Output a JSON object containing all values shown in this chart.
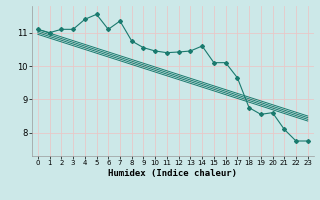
{
  "xlabel": "Humidex (Indice chaleur)",
  "bg_color": "#cce8e8",
  "grid_color": "#e8c8c8",
  "line_color": "#1a7a6e",
  "xlim": [
    -0.5,
    23.5
  ],
  "ylim": [
    7.3,
    11.8
  ],
  "x_ticks": [
    0,
    1,
    2,
    3,
    4,
    5,
    6,
    7,
    8,
    9,
    10,
    11,
    12,
    13,
    14,
    15,
    16,
    17,
    18,
    19,
    20,
    21,
    22,
    23
  ],
  "y_ticks": [
    8,
    9,
    10,
    11
  ],
  "data_x": [
    0,
    1,
    2,
    3,
    4,
    5,
    6,
    7,
    8,
    9,
    10,
    11,
    12,
    13,
    14,
    15,
    16,
    17,
    18,
    19,
    20,
    21,
    22,
    23
  ],
  "data_y": [
    11.1,
    11.0,
    11.1,
    11.1,
    11.4,
    11.55,
    11.1,
    11.35,
    10.75,
    10.55,
    10.45,
    10.4,
    10.42,
    10.45,
    10.6,
    10.1,
    10.1,
    9.65,
    8.75,
    8.55,
    8.6,
    8.1,
    7.75,
    7.75
  ],
  "reg_lines": [
    [
      11.1,
      8.5
    ],
    [
      11.05,
      8.45
    ],
    [
      11.0,
      8.4
    ],
    [
      10.95,
      8.35
    ]
  ]
}
